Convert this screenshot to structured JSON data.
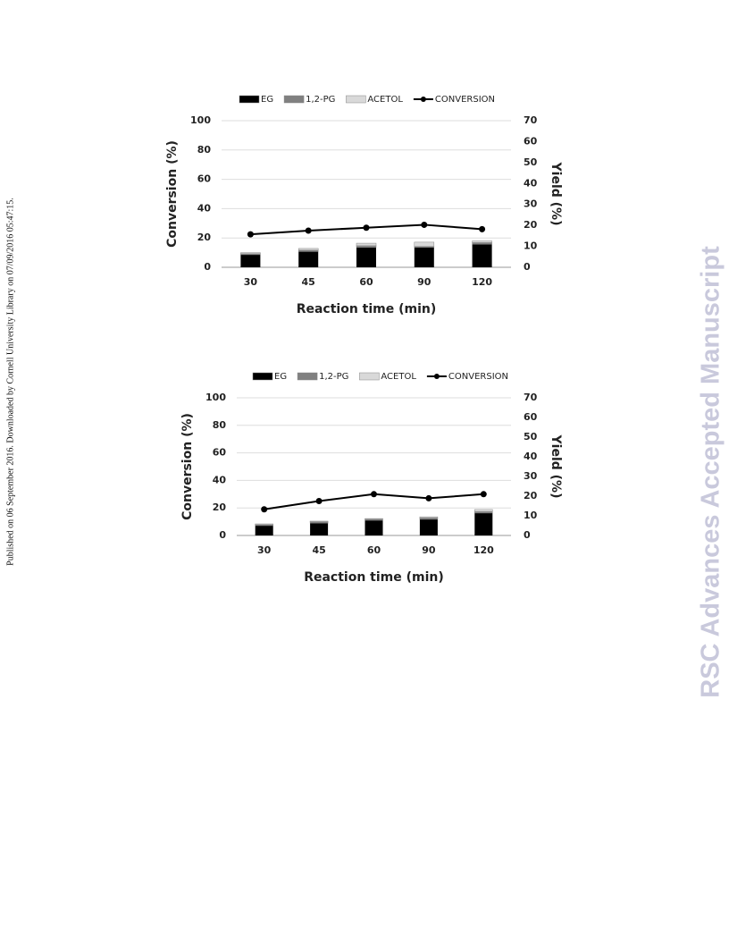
{
  "side_note": "Published on 06 September 2016. Downloaded by Cornell University Library on 07/09/2016 05:47:15.",
  "watermark": "RSC Advances Accepted Manuscript",
  "chart_data": [
    {
      "type": "bar",
      "stacked": true,
      "x_label": "Reaction time (min)",
      "y_label": "Conversion (%)",
      "y2_label": "Yield (%)",
      "categories": [
        "30",
        "45",
        "60",
        "90",
        "120"
      ],
      "ylim": [
        0,
        100
      ],
      "yticks": [
        0,
        20,
        40,
        60,
        80,
        100
      ],
      "y2lim": [
        0,
        70
      ],
      "y2ticks": [
        0,
        10,
        20,
        30,
        40,
        50,
        60,
        70
      ],
      "grid": true,
      "legend": "top",
      "series": [
        {
          "name": "EG",
          "color": "#000000",
          "axis": "y2",
          "values": [
            6,
            7.5,
            9.5,
            9.5,
            11
          ]
        },
        {
          "name": "1,2-PG",
          "color": "#808080",
          "axis": "y2",
          "values": [
            0.5,
            0.7,
            0.8,
            0.5,
            0.8
          ]
        },
        {
          "name": "ACETOL",
          "color": "#d9d9d9",
          "axis": "y2",
          "values": [
            0.5,
            0.8,
            1.2,
            2,
            0.8
          ]
        },
        {
          "name": "CONVERSION",
          "color": "#000000",
          "type": "line",
          "values": [
            22.5,
            25,
            27,
            29,
            26
          ]
        }
      ]
    },
    {
      "type": "bar",
      "stacked": true,
      "x_label": "Reaction time (min)",
      "y_label": "Conversion (%)",
      "y2_label": "Yield (%)",
      "categories": [
        "30",
        "45",
        "60",
        "90",
        "120"
      ],
      "ylim": [
        0,
        100
      ],
      "yticks": [
        0,
        20,
        40,
        60,
        80,
        100
      ],
      "y2lim": [
        0,
        70
      ],
      "y2ticks": [
        0,
        10,
        20,
        30,
        40,
        50,
        60,
        70
      ],
      "grid": true,
      "legend": "top",
      "series": [
        {
          "name": "EG",
          "color": "#000000",
          "axis": "y2",
          "values": [
            5,
            6.3,
            7.7,
            8.2,
            11.4
          ]
        },
        {
          "name": "1,2-PG",
          "color": "#808080",
          "axis": "y2",
          "values": [
            0.5,
            0.7,
            0.6,
            0.8,
            0.8
          ]
        },
        {
          "name": "ACETOL",
          "color": "#d9d9d9",
          "axis": "y2",
          "values": [
            0.4,
            0.3,
            0.3,
            0.5,
            1
          ]
        },
        {
          "name": "CONVERSION",
          "color": "#000000",
          "type": "line",
          "values": [
            19,
            25,
            30,
            27,
            30
          ]
        }
      ]
    }
  ]
}
